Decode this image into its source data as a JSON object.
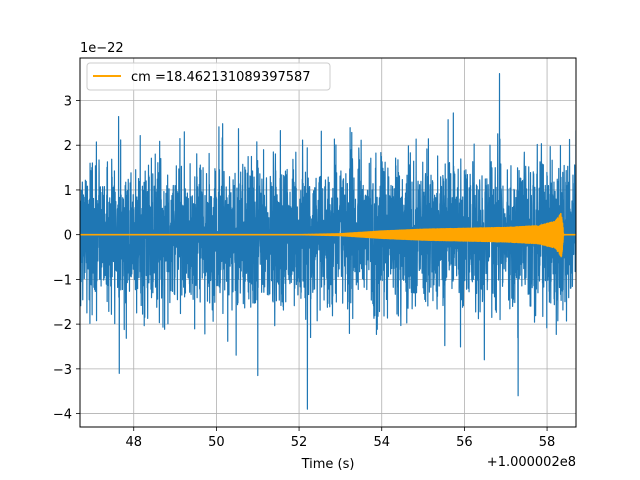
{
  "chart_data": {
    "type": "line",
    "title": "",
    "xlabel": "Time (s)",
    "ylabel": "",
    "x_offset_text": "+1.000002e8",
    "y_scale_text": "1e−22",
    "xlim": [
      46.7,
      58.7
    ],
    "ylim": [
      -4.3,
      3.95
    ],
    "x_ticks": [
      48,
      50,
      52,
      54,
      56,
      58
    ],
    "x_tick_labels": [
      "48",
      "50",
      "52",
      "54",
      "56",
      "58"
    ],
    "y_ticks": [
      -4,
      -3,
      -2,
      -1,
      0,
      1,
      2,
      3
    ],
    "y_tick_labels": [
      "−4",
      "−3",
      "−2",
      "−1",
      "0",
      "1",
      "2",
      "3"
    ],
    "grid": true,
    "legend_position": "top-left",
    "series": [
      {
        "name": "",
        "color": "#1f77b4",
        "kind": "noise",
        "x_start": 46.7,
        "x_end": 58.7,
        "approx_peak_max": 3.6,
        "approx_peak_min": -3.9,
        "typical_range": [
          -2.0,
          2.0
        ],
        "notable_extremes": [
          {
            "x": 52.2,
            "y": -3.9
          },
          {
            "x": 56.85,
            "y": 3.6
          },
          {
            "x": 57.3,
            "y": -3.6
          },
          {
            "x": 51.0,
            "y": -3.15
          },
          {
            "x": 47.65,
            "y": -3.1
          }
        ]
      },
      {
        "name": "cm =18.462131089397587",
        "color": "#ffa500",
        "kind": "chirp",
        "x_start": 46.7,
        "x_end": 58.7,
        "amplitude_envelope": [
          {
            "x": 46.7,
            "y": 0.0
          },
          {
            "x": 52.0,
            "y": 0.0
          },
          {
            "x": 53.0,
            "y": 0.02
          },
          {
            "x": 54.0,
            "y": 0.08
          },
          {
            "x": 55.0,
            "y": 0.12
          },
          {
            "x": 56.0,
            "y": 0.14
          },
          {
            "x": 57.0,
            "y": 0.16
          },
          {
            "x": 57.8,
            "y": 0.2
          },
          {
            "x": 58.2,
            "y": 0.3
          },
          {
            "x": 58.35,
            "y": 0.5
          },
          {
            "x": 58.4,
            "y": 0.0
          },
          {
            "x": 58.7,
            "y": 0.0
          }
        ]
      }
    ]
  }
}
